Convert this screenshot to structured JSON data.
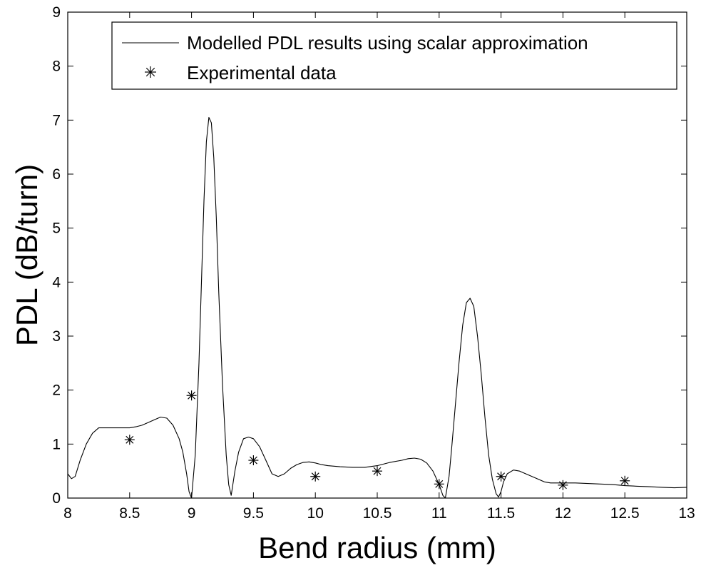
{
  "chart_data": {
    "type": "line",
    "title": "",
    "xlabel": "Bend radius (mm)",
    "ylabel": "PDL (dB/turn)",
    "xlim": [
      8,
      13
    ],
    "ylim": [
      0,
      9
    ],
    "x_ticks": [
      "8",
      "8.5",
      "9",
      "9.5",
      "10",
      "10.5",
      "11",
      "11.5",
      "12",
      "12.5",
      "13"
    ],
    "y_ticks": [
      "0",
      "1",
      "2",
      "3",
      "4",
      "5",
      "6",
      "7",
      "8",
      "9"
    ],
    "grid": false,
    "legend_position": "top-right",
    "series": [
      {
        "name": "Modelled PDL results using scalar approximation",
        "style": "line",
        "color": "#000000",
        "x": [
          8.0,
          8.03,
          8.06,
          8.1,
          8.15,
          8.2,
          8.25,
          8.3,
          8.4,
          8.5,
          8.55,
          8.6,
          8.65,
          8.7,
          8.75,
          8.8,
          8.85,
          8.9,
          8.93,
          8.96,
          8.98,
          9.0,
          9.03,
          9.06,
          9.08,
          9.1,
          9.12,
          9.14,
          9.16,
          9.18,
          9.2,
          9.22,
          9.25,
          9.28,
          9.3,
          9.32,
          9.35,
          9.38,
          9.42,
          9.46,
          9.5,
          9.55,
          9.6,
          9.65,
          9.7,
          9.75,
          9.8,
          9.85,
          9.9,
          9.95,
          10.0,
          10.05,
          10.1,
          10.2,
          10.3,
          10.4,
          10.5,
          10.6,
          10.7,
          10.75,
          10.8,
          10.85,
          10.9,
          10.95,
          11.0,
          11.03,
          11.05,
          11.08,
          11.1,
          11.13,
          11.16,
          11.19,
          11.22,
          11.25,
          11.28,
          11.31,
          11.34,
          11.37,
          11.4,
          11.43,
          11.46,
          11.48,
          11.5,
          11.52,
          11.55,
          11.6,
          11.65,
          11.7,
          11.75,
          11.8,
          11.85,
          11.9,
          11.95,
          12.0,
          12.1,
          12.2,
          12.3,
          12.4,
          12.5,
          12.6,
          12.7,
          12.8,
          12.9,
          13.0
        ],
        "y": [
          0.45,
          0.36,
          0.4,
          0.7,
          1.0,
          1.2,
          1.3,
          1.3,
          1.3,
          1.3,
          1.32,
          1.35,
          1.4,
          1.45,
          1.5,
          1.48,
          1.35,
          1.1,
          0.85,
          0.45,
          0.12,
          0.0,
          0.8,
          2.5,
          4.0,
          5.5,
          6.6,
          7.05,
          6.95,
          6.3,
          5.2,
          3.8,
          2.1,
          0.8,
          0.25,
          0.05,
          0.5,
          0.85,
          1.1,
          1.13,
          1.1,
          0.95,
          0.7,
          0.45,
          0.4,
          0.45,
          0.55,
          0.62,
          0.66,
          0.67,
          0.65,
          0.62,
          0.6,
          0.58,
          0.57,
          0.57,
          0.6,
          0.66,
          0.7,
          0.73,
          0.74,
          0.72,
          0.65,
          0.5,
          0.25,
          0.05,
          0.0,
          0.4,
          0.9,
          1.7,
          2.5,
          3.2,
          3.62,
          3.7,
          3.55,
          3.0,
          2.3,
          1.5,
          0.8,
          0.35,
          0.08,
          0.02,
          0.12,
          0.3,
          0.45,
          0.52,
          0.5,
          0.45,
          0.4,
          0.35,
          0.3,
          0.28,
          0.28,
          0.28,
          0.28,
          0.27,
          0.26,
          0.25,
          0.23,
          0.22,
          0.21,
          0.2,
          0.19,
          0.2
        ]
      },
      {
        "name": "Experimental data",
        "style": "marker",
        "marker": "*",
        "color": "#000000",
        "x": [
          8.5,
          9.0,
          9.5,
          10.0,
          10.5,
          11.0,
          11.5,
          12.0,
          12.5
        ],
        "y": [
          1.08,
          1.9,
          0.7,
          0.4,
          0.5,
          0.26,
          0.4,
          0.24,
          0.32
        ]
      }
    ]
  }
}
